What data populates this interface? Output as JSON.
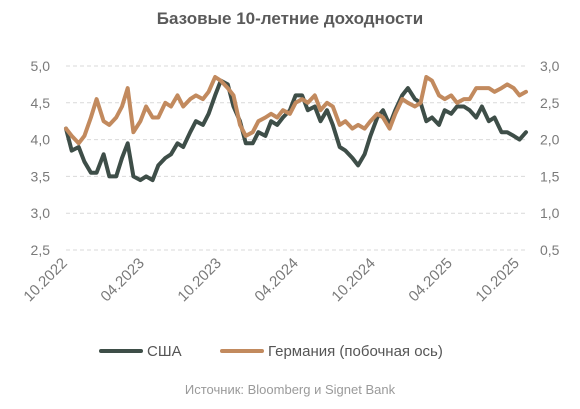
{
  "chart_data": {
    "type": "line",
    "title": "Базовые 10-летние доходности",
    "source": "Источник: Bloomberg и Signet Bank",
    "x_ticks": [
      "10.2022",
      "04.2023",
      "10.2023",
      "04.2024",
      "10.2024",
      "04.2025",
      "10.2025"
    ],
    "x_range": [
      "2022-10-01",
      "2025-10-31"
    ],
    "y_left": {
      "range": [
        2.5,
        5.0
      ],
      "ticks": [
        "2,5",
        "3,0",
        "3,5",
        "4,0",
        "4,5",
        "5,0"
      ],
      "tick_values": [
        2.5,
        3.0,
        3.5,
        4.0,
        4.5,
        5.0
      ]
    },
    "y_right": {
      "range": [
        0.5,
        3.0
      ],
      "ticks": [
        "0,5",
        "1,0",
        "1,5",
        "2,0",
        "2,5",
        "3,0"
      ],
      "tick_values": [
        0.5,
        1.0,
        1.5,
        2.0,
        2.5,
        3.0
      ]
    },
    "grid": "horizontal-dashed",
    "legend_placement": "bottom",
    "series": [
      {
        "name": "США",
        "axis": "left",
        "color": "#3e4e48",
        "points": [
          [
            "2022-10-01",
            4.15
          ],
          [
            "2022-10-15",
            3.85
          ],
          [
            "2022-11-01",
            3.9
          ],
          [
            "2022-11-15",
            3.7
          ],
          [
            "2022-12-01",
            3.55
          ],
          [
            "2022-12-15",
            3.55
          ],
          [
            "2023-01-01",
            3.8
          ],
          [
            "2023-01-15",
            3.5
          ],
          [
            "2023-02-01",
            3.5
          ],
          [
            "2023-02-15",
            3.75
          ],
          [
            "2023-03-01",
            3.95
          ],
          [
            "2023-03-15",
            3.5
          ],
          [
            "2023-04-01",
            3.45
          ],
          [
            "2023-04-15",
            3.5
          ],
          [
            "2023-05-01",
            3.45
          ],
          [
            "2023-05-15",
            3.65
          ],
          [
            "2023-06-01",
            3.75
          ],
          [
            "2023-06-15",
            3.8
          ],
          [
            "2023-07-01",
            3.95
          ],
          [
            "2023-07-15",
            3.9
          ],
          [
            "2023-08-01",
            4.1
          ],
          [
            "2023-08-15",
            4.25
          ],
          [
            "2023-09-01",
            4.2
          ],
          [
            "2023-09-15",
            4.35
          ],
          [
            "2023-10-01",
            4.6
          ],
          [
            "2023-10-15",
            4.8
          ],
          [
            "2023-11-01",
            4.75
          ],
          [
            "2023-11-15",
            4.45
          ],
          [
            "2023-12-01",
            4.25
          ],
          [
            "2023-12-15",
            3.95
          ],
          [
            "2024-01-01",
            3.95
          ],
          [
            "2024-01-15",
            4.1
          ],
          [
            "2024-02-01",
            4.05
          ],
          [
            "2024-02-15",
            4.25
          ],
          [
            "2024-03-01",
            4.2
          ],
          [
            "2024-03-15",
            4.3
          ],
          [
            "2024-04-01",
            4.4
          ],
          [
            "2024-04-15",
            4.6
          ],
          [
            "2024-05-01",
            4.6
          ],
          [
            "2024-05-15",
            4.4
          ],
          [
            "2024-06-01",
            4.45
          ],
          [
            "2024-06-15",
            4.25
          ],
          [
            "2024-07-01",
            4.4
          ],
          [
            "2024-07-15",
            4.2
          ],
          [
            "2024-08-01",
            3.9
          ],
          [
            "2024-08-15",
            3.85
          ],
          [
            "2024-09-01",
            3.75
          ],
          [
            "2024-09-15",
            3.65
          ],
          [
            "2024-10-01",
            3.8
          ],
          [
            "2024-10-15",
            4.05
          ],
          [
            "2024-11-01",
            4.3
          ],
          [
            "2024-11-15",
            4.4
          ],
          [
            "2024-12-01",
            4.2
          ],
          [
            "2024-12-15",
            4.4
          ],
          [
            "2025-01-01",
            4.6
          ],
          [
            "2025-01-15",
            4.7
          ],
          [
            "2025-02-01",
            4.55
          ],
          [
            "2025-02-15",
            4.5
          ],
          [
            "2025-03-01",
            4.25
          ],
          [
            "2025-03-15",
            4.3
          ],
          [
            "2025-04-01",
            4.2
          ],
          [
            "2025-04-15",
            4.4
          ],
          [
            "2025-05-01",
            4.35
          ],
          [
            "2025-05-15",
            4.45
          ],
          [
            "2025-06-01",
            4.45
          ],
          [
            "2025-06-15",
            4.4
          ],
          [
            "2025-07-01",
            4.3
          ],
          [
            "2025-07-15",
            4.45
          ],
          [
            "2025-08-01",
            4.25
          ],
          [
            "2025-08-15",
            4.3
          ],
          [
            "2025-09-01",
            4.1
          ],
          [
            "2025-09-15",
            4.1
          ],
          [
            "2025-10-01",
            4.05
          ],
          [
            "2025-10-15",
            4.0
          ],
          [
            "2025-10-31",
            4.1
          ]
        ]
      },
      {
        "name": "Германия (побочная ось)",
        "axis": "right",
        "color": "#c28a5e",
        "points": [
          [
            "2022-10-01",
            2.15
          ],
          [
            "2022-10-15",
            2.05
          ],
          [
            "2022-11-01",
            1.95
          ],
          [
            "2022-11-15",
            2.05
          ],
          [
            "2022-12-01",
            2.3
          ],
          [
            "2022-12-15",
            2.55
          ],
          [
            "2023-01-01",
            2.25
          ],
          [
            "2023-01-15",
            2.2
          ],
          [
            "2023-02-01",
            2.3
          ],
          [
            "2023-02-15",
            2.45
          ],
          [
            "2023-03-01",
            2.7
          ],
          [
            "2023-03-15",
            2.1
          ],
          [
            "2023-04-01",
            2.25
          ],
          [
            "2023-04-15",
            2.45
          ],
          [
            "2023-05-01",
            2.3
          ],
          [
            "2023-05-15",
            2.3
          ],
          [
            "2023-06-01",
            2.5
          ],
          [
            "2023-06-15",
            2.45
          ],
          [
            "2023-07-01",
            2.6
          ],
          [
            "2023-07-15",
            2.45
          ],
          [
            "2023-08-01",
            2.55
          ],
          [
            "2023-08-15",
            2.6
          ],
          [
            "2023-09-01",
            2.55
          ],
          [
            "2023-09-15",
            2.65
          ],
          [
            "2023-10-01",
            2.85
          ],
          [
            "2023-10-15",
            2.8
          ],
          [
            "2023-11-01",
            2.7
          ],
          [
            "2023-11-15",
            2.6
          ],
          [
            "2023-12-01",
            2.2
          ],
          [
            "2023-12-15",
            2.05
          ],
          [
            "2024-01-01",
            2.1
          ],
          [
            "2024-01-15",
            2.25
          ],
          [
            "2024-02-01",
            2.3
          ],
          [
            "2024-02-15",
            2.35
          ],
          [
            "2024-03-01",
            2.3
          ],
          [
            "2024-03-15",
            2.4
          ],
          [
            "2024-04-01",
            2.35
          ],
          [
            "2024-04-15",
            2.5
          ],
          [
            "2024-05-01",
            2.55
          ],
          [
            "2024-05-15",
            2.5
          ],
          [
            "2024-06-01",
            2.6
          ],
          [
            "2024-06-15",
            2.4
          ],
          [
            "2024-07-01",
            2.5
          ],
          [
            "2024-07-15",
            2.45
          ],
          [
            "2024-08-01",
            2.2
          ],
          [
            "2024-08-15",
            2.25
          ],
          [
            "2024-09-01",
            2.15
          ],
          [
            "2024-09-15",
            2.2
          ],
          [
            "2024-10-01",
            2.15
          ],
          [
            "2024-10-15",
            2.25
          ],
          [
            "2024-11-01",
            2.35
          ],
          [
            "2024-11-15",
            2.3
          ],
          [
            "2024-12-01",
            2.15
          ],
          [
            "2024-12-15",
            2.35
          ],
          [
            "2025-01-01",
            2.55
          ],
          [
            "2025-01-15",
            2.5
          ],
          [
            "2025-02-01",
            2.45
          ],
          [
            "2025-02-15",
            2.5
          ],
          [
            "2025-03-01",
            2.85
          ],
          [
            "2025-03-15",
            2.8
          ],
          [
            "2025-04-01",
            2.6
          ],
          [
            "2025-04-15",
            2.55
          ],
          [
            "2025-05-01",
            2.6
          ],
          [
            "2025-05-15",
            2.5
          ],
          [
            "2025-06-01",
            2.55
          ],
          [
            "2025-06-15",
            2.55
          ],
          [
            "2025-07-01",
            2.7
          ],
          [
            "2025-07-15",
            2.7
          ],
          [
            "2025-08-01",
            2.7
          ],
          [
            "2025-08-15",
            2.65
          ],
          [
            "2025-09-01",
            2.7
          ],
          [
            "2025-09-15",
            2.75
          ],
          [
            "2025-10-01",
            2.7
          ],
          [
            "2025-10-15",
            2.6
          ],
          [
            "2025-10-31",
            2.65
          ]
        ]
      }
    ]
  }
}
